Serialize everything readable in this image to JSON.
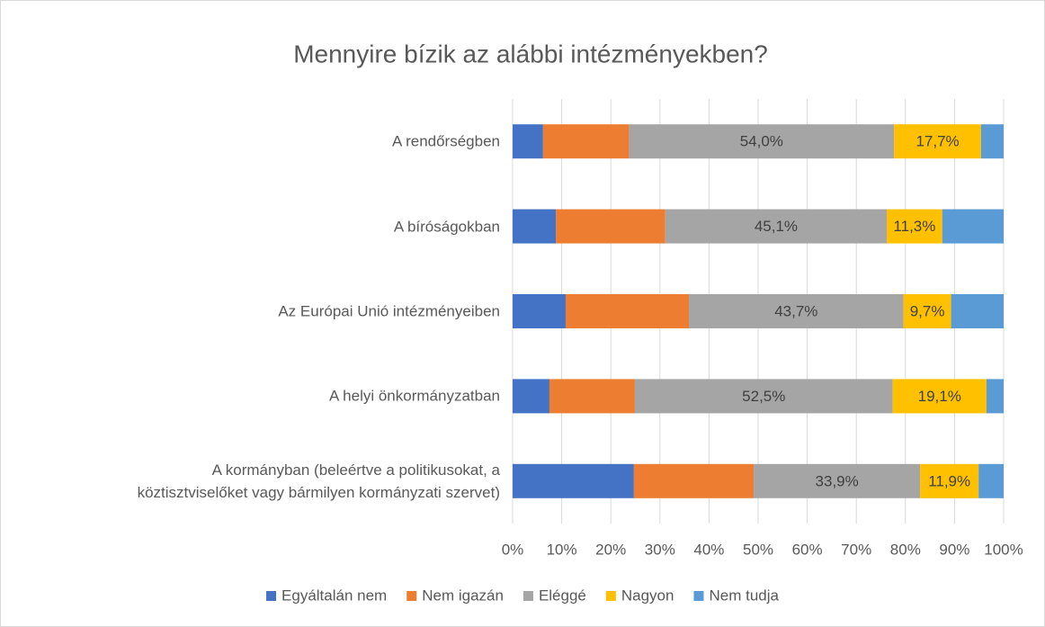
{
  "chart_data": {
    "type": "stacked_barh",
    "title": "Mennyire bízik az alábbi intézményekben?",
    "categories": [
      "A rendőrségben",
      "A bíróságokban",
      "Az Európai Unió intézményeiben",
      "A helyi önkormányzatban",
      "A kormányban (beleértve a politikusokat, a\nköztisztviselőket vagy bármilyen kormányzati szervet)"
    ],
    "series": [
      {
        "name": "Egyáltalán nem",
        "color": "#4472c4",
        "values": [
          6.2,
          8.8,
          10.8,
          7.5,
          24.7
        ]
      },
      {
        "name": "Nem igazán",
        "color": "#ed7d31",
        "values": [
          17.5,
          22.3,
          25.1,
          17.4,
          24.4
        ]
      },
      {
        "name": "Eléggé",
        "color": "#a5a5a5",
        "values": [
          54.0,
          45.1,
          43.7,
          52.5,
          33.9
        ],
        "value_labels": [
          "54,0%",
          "45,1%",
          "43,7%",
          "52,5%",
          "33,9%"
        ]
      },
      {
        "name": "Nagyon",
        "color": "#ffc000",
        "values": [
          17.7,
          11.3,
          9.7,
          19.1,
          11.9
        ],
        "value_labels": [
          "17,7%",
          "11,3%",
          "9,7%",
          "19,1%",
          "11,9%"
        ]
      },
      {
        "name": "Nem tudja",
        "color": "#5b9bd5",
        "values": [
          4.6,
          12.5,
          10.7,
          3.5,
          5.1
        ]
      }
    ],
    "xlim": [
      0,
      100
    ],
    "xticks": [
      {
        "value": 0,
        "label": "0%"
      },
      {
        "value": 10,
        "label": "10%"
      },
      {
        "value": 20,
        "label": "20%"
      },
      {
        "value": 30,
        "label": "30%"
      },
      {
        "value": 40,
        "label": "40%"
      },
      {
        "value": 50,
        "label": "50%"
      },
      {
        "value": 60,
        "label": "60%"
      },
      {
        "value": 70,
        "label": "70%"
      },
      {
        "value": 80,
        "label": "80%"
      },
      {
        "value": 90,
        "label": "90%"
      },
      {
        "value": 100,
        "label": "100%"
      }
    ],
    "grid": true,
    "legend": "bottom"
  }
}
